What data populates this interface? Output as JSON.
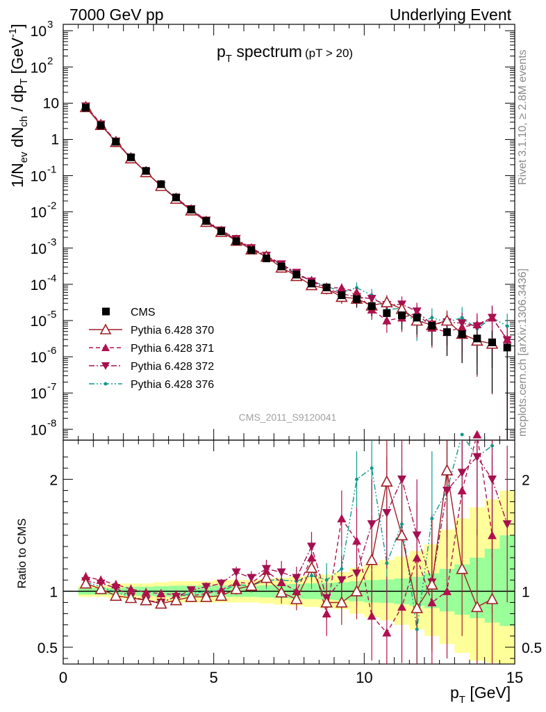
{
  "header": {
    "left": "7000 GeV pp",
    "right": "Underlying Event"
  },
  "side_labels": {
    "top": "Rivet 3.1.10, ≥ 2.8M events",
    "bottom": "mcplots.cern.ch [arXiv:1306.3436]"
  },
  "colors": {
    "data": "#000000",
    "p370": "#a01c25",
    "p371": "#b0104f",
    "p372": "#a31050",
    "p376": "#0e9a8c",
    "band_outer": "#ffff99",
    "band_inner": "#99ff99"
  },
  "chart_data": [
    {
      "type": "scatter",
      "panel": "main",
      "title_main": "p",
      "title_sub": "T",
      "title_rest": " spectrum",
      "title_cut": "(pT > 20)",
      "ylabel": "1/N_ev dN_ch / dp_T [GeV^-1]",
      "ylabel_parts": [
        "1/N",
        "ev",
        " dN",
        "ch",
        " / dp",
        "T",
        " [GeV",
        "-1",
        "]"
      ],
      "yscale": "log",
      "xlim": [
        0,
        15
      ],
      "ylim": [
        5e-09,
        1500
      ],
      "yticks": [
        {
          "exp": "3",
          "value": 1000
        },
        {
          "exp": "2",
          "value": 100
        },
        {
          "plain": "10",
          "value": 10
        },
        {
          "plain": "1",
          "value": 1
        },
        {
          "exp": "-1",
          "value": 0.1
        },
        {
          "exp": "-2",
          "value": 0.01
        },
        {
          "exp": "-3",
          "value": 0.001
        },
        {
          "exp": "-4",
          "value": 0.0001
        },
        {
          "exp": "-5",
          "value": 1e-05
        },
        {
          "exp": "-6",
          "value": 1e-06
        },
        {
          "exp": "-7",
          "value": 1e-07
        },
        {
          "exp": "-8",
          "value": 1e-08
        }
      ],
      "watermark": "CMS_2011_S9120041",
      "legend": [
        "CMS",
        "Pythia 6.428 370",
        "Pythia 6.428 371",
        "Pythia 6.428 372",
        "Pythia 6.428 376"
      ],
      "x": [
        0.75,
        1.25,
        1.75,
        2.25,
        2.75,
        3.25,
        3.75,
        4.25,
        4.75,
        5.25,
        5.75,
        6.25,
        6.75,
        7.25,
        7.75,
        8.25,
        8.75,
        9.25,
        9.75,
        10.25,
        10.75,
        11.25,
        11.75,
        12.25,
        12.75,
        13.25,
        13.75,
        14.25,
        14.75
      ],
      "series": [
        {
          "name": "CMS",
          "key": "cms",
          "values": [
            7.5,
            2.45,
            0.86,
            0.32,
            0.135,
            0.058,
            0.025,
            0.0115,
            0.0056,
            0.0029,
            0.00155,
            0.00088,
            0.00052,
            0.00031,
            0.000185,
            0.000105,
            8.2e-05,
            5e-05,
            3.9e-05,
            2.5e-05,
            1.6e-05,
            1.4e-05,
            1.2e-05,
            7.2e-06,
            4.8e-06,
            4.2e-06,
            3.2e-06,
            2.5e-06,
            1.8e-06
          ]
        },
        {
          "name": "Pythia 6.428 370",
          "key": "p370",
          "values": [
            7.8,
            2.5,
            0.85,
            0.3,
            0.125,
            0.052,
            0.023,
            0.011,
            0.0053,
            0.0028,
            0.0016,
            0.00092,
            0.00058,
            0.00029,
            0.00017,
            9.5e-05,
            7.5e-05,
            4.5e-05,
            4e-05,
            2.6e-05,
            3.2e-05,
            2.1e-05,
            1e-05,
            7.5e-06,
            1e-05,
            4.3e-06,
            2.8e-06,
            2.3e-06,
            null
          ]
        },
        {
          "name": "Pythia 6.428 371",
          "key": "p371",
          "values": [
            8.5,
            2.7,
            0.9,
            0.31,
            0.125,
            0.051,
            0.023,
            0.011,
            0.0055,
            0.003,
            0.0017,
            0.00095,
            0.00058,
            0.00034,
            0.00018,
            0.00013,
            8e-05,
            8e-05,
            6e-05,
            2e-05,
            1e-05,
            1.2e-05,
            1.6e-05,
            6.3e-06,
            4.8e-06,
            6.6e-06,
            7.8e-06,
            1.2e-05,
            3e-06
          ]
        },
        {
          "name": "Pythia 6.428 372",
          "key": "p372",
          "values": [
            8.2,
            2.6,
            0.88,
            0.3,
            0.125,
            0.052,
            0.024,
            0.012,
            0.0058,
            0.0031,
            0.0018,
            0.001,
            0.00062,
            0.00036,
            0.00021,
            0.00012,
            7.5e-05,
            5.5e-05,
            4.5e-05,
            4e-05,
            2.7e-05,
            2.8e-05,
            1.8e-05,
            7.8e-06,
            9e-06,
            8.5e-06,
            7e-06,
            1.2e-05,
            2.9e-06
          ]
        },
        {
          "name": "Pythia 6.428 376",
          "key": "p376",
          "values": [
            8.1,
            2.55,
            0.87,
            0.31,
            0.125,
            0.053,
            0.024,
            0.0115,
            0.0056,
            0.0029,
            0.00165,
            0.00092,
            0.00058,
            0.00034,
            0.0002,
            0.00012,
            9e-05,
            6e-05,
            8e-05,
            5e-05,
            2e-05,
            2.2e-05,
            8e-06,
            1.2e-05,
            9e-06,
            1.2e-05,
            6e-06,
            1.2e-05,
            7e-06
          ]
        }
      ]
    },
    {
      "type": "scatter",
      "panel": "ratio",
      "ylabel": "Ratio to CMS",
      "xlabel_main": "p",
      "xlabel_sub": "T",
      "xlabel_rest": " [GeV]",
      "xlim": [
        0,
        15
      ],
      "ylim": [
        0.35,
        2.35
      ],
      "xticks": [
        "0",
        "5",
        "10",
        "15"
      ],
      "yticks": [
        "0.5",
        "1",
        "2"
      ],
      "band_inner": [
        [
          0.5,
          1.0,
          0.97,
          1.03
        ],
        [
          1.0,
          1.5,
          0.97,
          1.03
        ],
        [
          1.5,
          2.0,
          0.97,
          1.03
        ],
        [
          2.0,
          2.5,
          0.96,
          1.04
        ],
        [
          2.5,
          3.0,
          0.96,
          1.04
        ],
        [
          3.0,
          3.5,
          0.955,
          1.045
        ],
        [
          3.5,
          4.0,
          0.95,
          1.05
        ],
        [
          4.0,
          4.5,
          0.95,
          1.05
        ],
        [
          4.5,
          5.0,
          0.95,
          1.05
        ],
        [
          5.0,
          5.5,
          0.95,
          1.05
        ],
        [
          5.5,
          6.0,
          0.95,
          1.05
        ],
        [
          6.0,
          6.5,
          0.95,
          1.05
        ],
        [
          6.5,
          7.0,
          0.945,
          1.055
        ],
        [
          7.0,
          7.5,
          0.94,
          1.06
        ],
        [
          7.5,
          8.0,
          0.935,
          1.065
        ],
        [
          8.0,
          8.5,
          0.93,
          1.07
        ],
        [
          8.5,
          9.0,
          0.925,
          1.075
        ],
        [
          9.0,
          9.5,
          0.92,
          1.08
        ],
        [
          9.5,
          10.0,
          0.91,
          1.09
        ],
        [
          10.0,
          10.5,
          0.9,
          1.1
        ],
        [
          10.5,
          11.0,
          0.895,
          1.105
        ],
        [
          11.0,
          11.5,
          0.885,
          1.115
        ],
        [
          11.5,
          12.0,
          0.87,
          1.13
        ],
        [
          12.0,
          12.5,
          0.85,
          1.16
        ],
        [
          12.5,
          13.0,
          0.82,
          1.2
        ],
        [
          13.0,
          13.5,
          0.79,
          1.24
        ],
        [
          13.5,
          14.0,
          0.76,
          1.3
        ],
        [
          14.0,
          14.5,
          0.72,
          1.38
        ],
        [
          14.5,
          15.0,
          0.69,
          1.5
        ]
      ],
      "band_outer": [
        [
          0.5,
          1.0,
          0.95,
          1.05
        ],
        [
          1.0,
          1.5,
          0.95,
          1.05
        ],
        [
          1.5,
          2.0,
          0.935,
          1.07
        ],
        [
          2.0,
          2.5,
          0.93,
          1.07
        ],
        [
          2.5,
          3.0,
          0.92,
          1.07
        ],
        [
          3.0,
          3.5,
          0.91,
          1.08
        ],
        [
          3.5,
          4.0,
          0.9,
          1.09
        ],
        [
          4.0,
          4.5,
          0.9,
          1.09
        ],
        [
          4.5,
          5.0,
          0.9,
          1.09
        ],
        [
          5.0,
          5.5,
          0.9,
          1.1
        ],
        [
          5.5,
          6.0,
          0.9,
          1.1
        ],
        [
          6.0,
          6.5,
          0.9,
          1.1
        ],
        [
          6.5,
          7.0,
          0.89,
          1.11
        ],
        [
          7.0,
          7.5,
          0.88,
          1.12
        ],
        [
          7.5,
          8.0,
          0.87,
          1.13
        ],
        [
          8.0,
          8.5,
          0.86,
          1.14
        ],
        [
          8.5,
          9.0,
          0.85,
          1.15
        ],
        [
          9.0,
          9.5,
          0.84,
          1.17
        ],
        [
          9.5,
          10.0,
          0.8,
          1.21
        ],
        [
          10.0,
          10.5,
          0.77,
          1.24
        ],
        [
          10.5,
          11.0,
          0.74,
          1.28
        ],
        [
          11.0,
          11.5,
          0.7,
          1.31
        ],
        [
          11.5,
          12.0,
          0.66,
          1.36
        ],
        [
          12.0,
          12.5,
          0.6,
          1.42
        ],
        [
          12.5,
          13.0,
          0.53,
          1.55
        ],
        [
          13.0,
          13.5,
          0.45,
          1.65
        ],
        [
          13.5,
          14.0,
          0.38,
          1.75
        ],
        [
          14.0,
          14.5,
          0.36,
          1.82
        ],
        [
          14.5,
          15.0,
          0.35,
          1.9
        ]
      ],
      "series": [
        {
          "name": "Pythia 6.428 370",
          "key": "p370",
          "values": [
            1.07,
            1.02,
            0.96,
            0.94,
            0.92,
            0.89,
            0.92,
            0.95,
            0.95,
            0.96,
            1.02,
            1.05,
            1.12,
            0.99,
            0.93,
            1.21,
            0.9,
            0.9,
            1.0,
            1.28,
            1.98,
            1.5,
            0.85,
            1.06,
            2.08,
            1.2,
            0.86,
            0.93,
            null
          ],
          "err": [
            0.03,
            0.03,
            0.03,
            0.03,
            0.03,
            0.03,
            0.03,
            0.03,
            0.04,
            0.04,
            0.05,
            0.06,
            0.08,
            0.1,
            0.1,
            0.12,
            0.15,
            0.2,
            0.25,
            0.4,
            0.5,
            0.5,
            0.5,
            0.6,
            0.6,
            0.6,
            0.7,
            0.7,
            0
          ]
        },
        {
          "name": "Pythia 6.428 371",
          "key": "p371",
          "values": [
            1.13,
            1.1,
            1.06,
            1.02,
            0.99,
            0.98,
            0.97,
            0.96,
            0.98,
            1.01,
            1.08,
            1.07,
            1.18,
            1.08,
            1.0,
            1.3,
            0.8,
            1.65,
            1.45,
            0.78,
            0.63,
            0.86,
            1.3,
            0.9,
            1.0,
            1.9,
            2.4,
            1.5,
            null
          ],
          "err": [
            0.04,
            0.04,
            0.04,
            0.04,
            0.04,
            0.04,
            0.04,
            0.04,
            0.05,
            0.05,
            0.06,
            0.07,
            0.1,
            0.1,
            0.12,
            0.15,
            0.2,
            0.25,
            0.3,
            0.4,
            0.5,
            0.5,
            0.5,
            0.6,
            0.6,
            0.6,
            0.7,
            0.7,
            0
          ]
        },
        {
          "name": "Pythia 6.428 372",
          "key": "p372",
          "values": [
            1.09,
            1.07,
            1.03,
            0.95,
            0.92,
            0.9,
            0.95,
            1.01,
            1.04,
            1.07,
            1.17,
            1.12,
            1.2,
            1.17,
            1.12,
            1.4,
            0.94,
            1.1,
            1.16,
            1.6,
            1.7,
            2.0,
            1.5,
            1.08,
            1.9,
            2.06,
            2.2,
            2.0,
            1.6
          ],
          "err": [
            0.03,
            0.03,
            0.03,
            0.03,
            0.03,
            0.03,
            0.03,
            0.03,
            0.04,
            0.04,
            0.05,
            0.06,
            0.08,
            0.1,
            0.1,
            0.13,
            0.18,
            0.22,
            0.3,
            0.4,
            0.5,
            0.5,
            0.5,
            0.6,
            0.6,
            0.6,
            0.7,
            0.7,
            0.7
          ]
        },
        {
          "name": "Pythia 6.428 376",
          "key": "p376",
          "values": [
            1.08,
            1.04,
            0.99,
            0.95,
            0.92,
            0.9,
            0.95,
            0.98,
            1.0,
            1.0,
            1.06,
            1.05,
            1.1,
            1.1,
            1.09,
            1.14,
            1.1,
            1.2,
            2.0,
            2.1,
            1.25,
            1.6,
            0.66,
            1.65,
            1.9,
            2.4,
            2.2,
            2.3,
            null
          ],
          "err": [
            0.03,
            0.03,
            0.03,
            0.03,
            0.03,
            0.03,
            0.03,
            0.03,
            0.04,
            0.04,
            0.05,
            0.06,
            0.08,
            0.1,
            0.1,
            0.12,
            0.15,
            0.2,
            0.25,
            0.4,
            0.5,
            0.5,
            0.5,
            0.6,
            0.6,
            0.6,
            0.7,
            0.7,
            0
          ]
        }
      ]
    }
  ]
}
